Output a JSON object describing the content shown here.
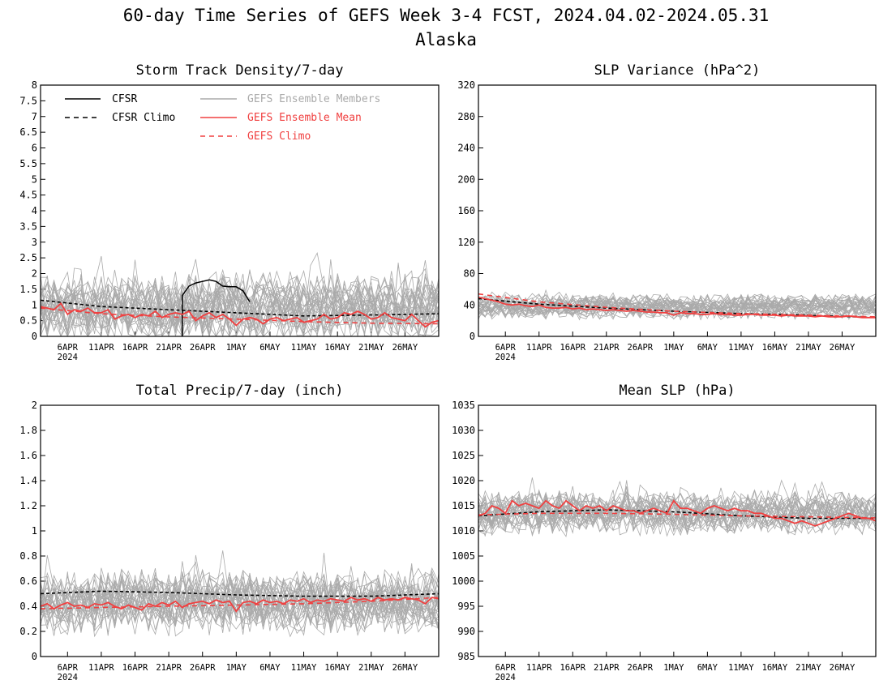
{
  "title": "60-day Time Series of GEFS Week 3-4 FCST, 2024.04.02-2024.05.31",
  "subtitle": "Alaska",
  "colors": {
    "cfsr": "#000000",
    "members": "#aaaaaa",
    "ens_mean": "#f04040",
    "climo": "#f04040"
  },
  "legend": {
    "cfsr": "CFSR",
    "cfsr_climo": "CFSR Climo",
    "members": "GEFS Ensemble Members",
    "ens_mean": "GEFS Ensemble Mean",
    "gefs_climo": "GEFS Climo"
  },
  "chart_data": [
    {
      "type": "line",
      "title": "Storm Track Density/7-day",
      "ylim": [
        0,
        8
      ],
      "yticks": [
        0,
        0.5,
        1,
        1.5,
        2,
        2.5,
        3,
        3.5,
        4,
        4.5,
        5,
        5.5,
        6,
        6.5,
        7,
        7.5,
        8
      ],
      "ytick_labels": [
        "0",
        "0.5",
        "1",
        "1.5",
        "2",
        "2.5",
        "3",
        "3.5",
        "4",
        "4.5",
        "5",
        "5.5",
        "6",
        "6.5",
        "7",
        "7.5",
        "8"
      ],
      "xlim": [
        1,
        60
      ],
      "xticks": [
        5,
        10,
        15,
        20,
        25,
        30,
        35,
        40,
        45,
        50,
        55
      ],
      "xtick_labels": [
        "6APR",
        "11APR",
        "16APR",
        "21APR",
        "26APR",
        "1MAY",
        "6MAY",
        "11MAY",
        "16MAY",
        "21MAY",
        "26MAY"
      ],
      "year_label": "2024",
      "members_spec": {
        "count": 30,
        "base": 0.9,
        "spread": 1.6,
        "min": 0
      },
      "series": [
        {
          "role": "cfsr",
          "x": [
            22,
            22,
            23,
            24,
            25,
            26,
            27,
            28,
            29,
            30,
            31,
            32
          ],
          "values": [
            0.0,
            1.3,
            1.6,
            1.7,
            1.75,
            1.8,
            1.75,
            1.6,
            1.58,
            1.58,
            1.45,
            1.1
          ]
        },
        {
          "role": "cfsr_climo",
          "x": [
            1,
            10,
            20,
            30,
            40,
            50,
            60
          ],
          "values": [
            1.15,
            0.95,
            0.85,
            0.75,
            0.65,
            0.68,
            0.72
          ]
        },
        {
          "role": "ens_mean",
          "x": [
            1,
            2,
            3,
            4,
            5,
            6,
            7,
            8,
            9,
            10,
            11,
            12,
            13,
            14,
            15,
            16,
            17,
            18,
            19,
            20,
            21,
            22,
            23,
            24,
            25,
            26,
            27,
            28,
            29,
            30,
            31,
            32,
            33,
            34,
            35,
            36,
            37,
            38,
            39,
            40,
            41,
            42,
            43,
            44,
            45,
            46,
            47,
            48,
            49,
            50,
            51,
            52,
            53,
            54,
            55,
            56,
            57,
            58,
            59,
            60
          ],
          "values": [
            0.95,
            0.9,
            0.85,
            1.05,
            0.7,
            0.85,
            0.8,
            0.9,
            0.75,
            0.75,
            0.85,
            0.55,
            0.65,
            0.7,
            0.6,
            0.7,
            0.65,
            0.8,
            0.6,
            0.7,
            0.75,
            0.7,
            0.8,
            0.5,
            0.65,
            0.75,
            0.6,
            0.7,
            0.55,
            0.35,
            0.55,
            0.6,
            0.55,
            0.4,
            0.55,
            0.6,
            0.5,
            0.55,
            0.6,
            0.45,
            0.5,
            0.55,
            0.7,
            0.55,
            0.6,
            0.75,
            0.7,
            0.8,
            0.7,
            0.55,
            0.6,
            0.75,
            0.6,
            0.55,
            0.5,
            0.7,
            0.5,
            0.3,
            0.45,
            0.5
          ]
        },
        {
          "role": "gefs_climo",
          "x": [
            1,
            10,
            20,
            30,
            40,
            50,
            60
          ],
          "values": [
            0.9,
            0.72,
            0.62,
            0.55,
            0.47,
            0.42,
            0.4
          ]
        }
      ]
    },
    {
      "type": "line",
      "title": "SLP Variance (hPa^2)",
      "ylim": [
        0,
        320
      ],
      "yticks": [
        0,
        40,
        80,
        120,
        160,
        200,
        240,
        280,
        320
      ],
      "ytick_labels": [
        "0",
        "40",
        "80",
        "120",
        "160",
        "200",
        "240",
        "280",
        "320"
      ],
      "xlim": [
        1,
        60
      ],
      "xticks": [
        5,
        10,
        15,
        20,
        25,
        30,
        35,
        40,
        45,
        50,
        55
      ],
      "xtick_labels": [
        "6APR",
        "11APR",
        "16APR",
        "21APR",
        "26APR",
        "1MAY",
        "6MAY",
        "11MAY",
        "16MAY",
        "21MAY",
        "26MAY"
      ],
      "year_label": "2024",
      "members_spec": {
        "count": 30,
        "base": 38,
        "spread": 22,
        "min": 10
      },
      "series": [
        {
          "role": "cfsr_climo",
          "x": [
            1,
            10,
            20,
            30,
            40,
            50,
            60
          ],
          "values": [
            48,
            41,
            36,
            32,
            29,
            27,
            24
          ]
        },
        {
          "role": "ens_mean",
          "x": [
            1,
            2,
            3,
            4,
            5,
            6,
            7,
            8,
            9,
            10,
            11,
            12,
            13,
            14,
            15,
            16,
            17,
            18,
            19,
            20,
            21,
            22,
            23,
            24,
            25,
            26,
            27,
            28,
            29,
            30,
            31,
            32,
            33,
            34,
            35,
            36,
            37,
            38,
            39,
            40,
            41,
            42,
            43,
            44,
            45,
            46,
            47,
            48,
            49,
            50,
            51,
            52,
            53,
            54,
            55,
            56,
            57,
            58,
            59,
            60
          ],
          "values": [
            50,
            48,
            46,
            44,
            41,
            40,
            41,
            39,
            38,
            40,
            37,
            36,
            36,
            37,
            35,
            36,
            34,
            35,
            34,
            33,
            34,
            33,
            32,
            33,
            32,
            31,
            31,
            30,
            30,
            27,
            30,
            29,
            29,
            28,
            28,
            29,
            28,
            28,
            27,
            27,
            28,
            28,
            27,
            27,
            27,
            26,
            27,
            26,
            26,
            26,
            25,
            26,
            25,
            25,
            25,
            26,
            25,
            24,
            24,
            24
          ]
        },
        {
          "role": "gefs_climo",
          "x": [
            1,
            10,
            20,
            30,
            40,
            50,
            60
          ],
          "values": [
            54,
            44,
            37,
            32,
            29,
            27,
            25
          ]
        }
      ]
    },
    {
      "type": "line",
      "title": "Total Precip/7-day (inch)",
      "ylim": [
        0,
        2
      ],
      "yticks": [
        0,
        0.2,
        0.4,
        0.6,
        0.8,
        1,
        1.2,
        1.4,
        1.6,
        1.8,
        2
      ],
      "ytick_labels": [
        "0",
        "0.2",
        "0.4",
        "0.6",
        "0.8",
        "1",
        "1.2",
        "1.4",
        "1.6",
        "1.8",
        "2"
      ],
      "xlim": [
        1,
        60
      ],
      "xticks": [
        5,
        10,
        15,
        20,
        25,
        30,
        35,
        40,
        45,
        50,
        55
      ],
      "xtick_labels": [
        "6APR",
        "11APR",
        "16APR",
        "21APR",
        "26APR",
        "1MAY",
        "6MAY",
        "11MAY",
        "16MAY",
        "21MAY",
        "26MAY"
      ],
      "year_label": "2024",
      "members_spec": {
        "count": 30,
        "base": 0.43,
        "spread": 0.35,
        "min": 0.08
      },
      "series": [
        {
          "role": "cfsr_climo",
          "x": [
            1,
            10,
            20,
            30,
            40,
            50,
            60
          ],
          "values": [
            0.5,
            0.52,
            0.51,
            0.49,
            0.48,
            0.48,
            0.5
          ]
        },
        {
          "role": "ens_mean",
          "x": [
            1,
            2,
            3,
            4,
            5,
            6,
            7,
            8,
            9,
            10,
            11,
            12,
            13,
            14,
            15,
            16,
            17,
            18,
            19,
            20,
            21,
            22,
            23,
            24,
            25,
            26,
            27,
            28,
            29,
            30,
            31,
            32,
            33,
            34,
            35,
            36,
            37,
            38,
            39,
            40,
            41,
            42,
            43,
            44,
            45,
            46,
            47,
            48,
            49,
            50,
            51,
            52,
            53,
            54,
            55,
            56,
            57,
            58,
            59,
            60
          ],
          "values": [
            0.4,
            0.42,
            0.38,
            0.41,
            0.43,
            0.4,
            0.41,
            0.39,
            0.42,
            0.41,
            0.43,
            0.4,
            0.38,
            0.41,
            0.39,
            0.37,
            0.42,
            0.4,
            0.43,
            0.41,
            0.44,
            0.39,
            0.42,
            0.43,
            0.44,
            0.42,
            0.45,
            0.43,
            0.44,
            0.36,
            0.43,
            0.44,
            0.42,
            0.45,
            0.43,
            0.44,
            0.42,
            0.45,
            0.44,
            0.46,
            0.43,
            0.45,
            0.44,
            0.46,
            0.45,
            0.44,
            0.47,
            0.45,
            0.46,
            0.44,
            0.47,
            0.45,
            0.46,
            0.45,
            0.47,
            0.46,
            0.45,
            0.42,
            0.47,
            0.46
          ]
        },
        {
          "role": "gefs_climo",
          "x": [
            1,
            10,
            20,
            30,
            40,
            50,
            60
          ],
          "values": [
            0.38,
            0.39,
            0.4,
            0.41,
            0.42,
            0.44,
            0.47
          ]
        }
      ]
    },
    {
      "type": "line",
      "title": "Mean SLP (hPa)",
      "ylim": [
        985,
        1035
      ],
      "yticks": [
        985,
        990,
        995,
        1000,
        1005,
        1010,
        1015,
        1020,
        1025,
        1030,
        1035
      ],
      "ytick_labels": [
        "985",
        "990",
        "995",
        "1000",
        "1005",
        "1010",
        "1015",
        "1020",
        "1025",
        "1030",
        "1035"
      ],
      "xlim": [
        1,
        60
      ],
      "xticks": [
        5,
        10,
        15,
        20,
        25,
        30,
        35,
        40,
        45,
        50,
        55
      ],
      "xtick_labels": [
        "6APR",
        "11APR",
        "16APR",
        "21APR",
        "26APR",
        "1MAY",
        "6MAY",
        "11MAY",
        "16MAY",
        "21MAY",
        "26MAY"
      ],
      "year_label": "2024",
      "members_spec": {
        "count": 30,
        "base": 1013.5,
        "spread": 6,
        "min": 1003
      },
      "series": [
        {
          "role": "cfsr_climo",
          "x": [
            1,
            10,
            20,
            30,
            40,
            50,
            60
          ],
          "values": [
            1013,
            1013.8,
            1014.2,
            1013.8,
            1013,
            1012.5,
            1012.5
          ]
        },
        {
          "role": "ens_mean",
          "x": [
            1,
            2,
            3,
            4,
            5,
            6,
            7,
            8,
            9,
            10,
            11,
            12,
            13,
            14,
            15,
            16,
            17,
            18,
            19,
            20,
            21,
            22,
            23,
            24,
            25,
            26,
            27,
            28,
            29,
            30,
            31,
            32,
            33,
            34,
            35,
            36,
            37,
            38,
            39,
            40,
            41,
            42,
            43,
            44,
            45,
            46,
            47,
            48,
            49,
            50,
            51,
            52,
            53,
            54,
            55,
            56,
            57,
            58,
            59,
            60
          ],
          "values": [
            1013,
            1013.5,
            1015,
            1014.5,
            1013.5,
            1016,
            1015,
            1015.5,
            1015,
            1014.5,
            1016,
            1015,
            1014.5,
            1016,
            1015,
            1014,
            1015,
            1014.5,
            1015,
            1014,
            1015,
            1014.5,
            1014,
            1014,
            1013.5,
            1014,
            1014.5,
            1014,
            1013.5,
            1016,
            1014.5,
            1014.5,
            1014,
            1013.5,
            1014.5,
            1015,
            1014.5,
            1014,
            1014.5,
            1014,
            1014,
            1013.5,
            1013.5,
            1013,
            1012.5,
            1012.5,
            1012,
            1011.5,
            1012,
            1011.5,
            1011,
            1011.5,
            1012,
            1012.5,
            1013,
            1013.5,
            1013,
            1012.5,
            1012.5,
            1012
          ]
        },
        {
          "role": "gefs_climo",
          "x": [
            1,
            10,
            20,
            30,
            40,
            50,
            60
          ],
          "values": [
            1013.2,
            1013.5,
            1013.5,
            1013.3,
            1013,
            1012.8,
            1012.6
          ]
        }
      ]
    }
  ]
}
